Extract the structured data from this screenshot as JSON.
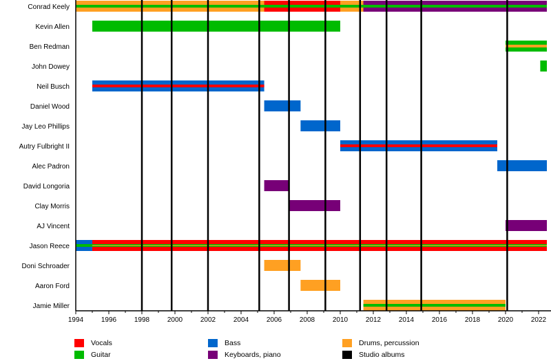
{
  "chart_data": {
    "type": "timeline",
    "x_min": 1994,
    "x_max": 2022.5,
    "x_ticks": [
      "1994",
      "1996",
      "1998",
      "2000",
      "2002",
      "2004",
      "2006",
      "2008",
      "2010",
      "2012",
      "2014",
      "2016",
      "2018",
      "2020",
      "2022"
    ],
    "album_lines": [
      1998,
      1999.8,
      2002,
      2005.1,
      2006.9,
      2009.1,
      2011.2,
      2012.8,
      2014.9,
      2020.1
    ],
    "colors": {
      "vocals": "#ff0000",
      "guitar": "#00bb00",
      "bass": "#0066cc",
      "keys": "#770077",
      "drums": "#ffa022",
      "albums": "#000000"
    },
    "members": [
      {
        "name": "Conrad Keely",
        "bars": [
          {
            "start": 1994,
            "end": 2022.5,
            "primary": "vocals",
            "stripe": "guitar"
          },
          {
            "start": 1994,
            "end": 2005.4,
            "primary": "drums",
            "stripe": "guitar"
          },
          {
            "start": 2010,
            "end": 2011.4,
            "primary": "drums",
            "stripe": "guitar"
          },
          {
            "start": 2011.4,
            "end": 2022.5,
            "primary": "keys",
            "stripe": "guitar"
          }
        ]
      },
      {
        "name": "Kevin Allen",
        "bars": [
          {
            "start": 1995,
            "end": 2010,
            "primary": "guitar"
          }
        ]
      },
      {
        "name": "Ben Redman",
        "bars": [
          {
            "start": 2020,
            "end": 2022.5,
            "primary": "guitar",
            "stripe": "drums"
          }
        ]
      },
      {
        "name": "John Dowey",
        "bars": [
          {
            "start": 2022.1,
            "end": 2022.5,
            "primary": "guitar"
          }
        ]
      },
      {
        "name": "Neil Busch",
        "bars": [
          {
            "start": 1995,
            "end": 2005.4,
            "primary": "bass",
            "stripe": "vocals"
          }
        ]
      },
      {
        "name": "Daniel Wood",
        "bars": [
          {
            "start": 2005.4,
            "end": 2007.6,
            "primary": "bass"
          }
        ]
      },
      {
        "name": "Jay Leo Phillips",
        "bars": [
          {
            "start": 2007.6,
            "end": 2010,
            "primary": "bass"
          }
        ]
      },
      {
        "name": "Autry Fulbright II",
        "bars": [
          {
            "start": 2010,
            "end": 2019.5,
            "primary": "bass",
            "stripe": "vocals"
          }
        ]
      },
      {
        "name": "Alec Padron",
        "bars": [
          {
            "start": 2019.5,
            "end": 2022.5,
            "primary": "bass"
          }
        ]
      },
      {
        "name": "David Longoria",
        "bars": [
          {
            "start": 2005.4,
            "end": 2006.9,
            "primary": "keys"
          }
        ]
      },
      {
        "name": "Clay Morris",
        "bars": [
          {
            "start": 2006.9,
            "end": 2010,
            "primary": "keys"
          }
        ]
      },
      {
        "name": "AJ Vincent",
        "bars": [
          {
            "start": 2020,
            "end": 2022.5,
            "primary": "keys"
          }
        ]
      },
      {
        "name": "Jason Reece",
        "bars": [
          {
            "start": 1994,
            "end": 2022.5,
            "primary": "vocals",
            "stripe": "guitar",
            "stripe2": "drums"
          },
          {
            "start": 1994,
            "end": 1995,
            "primary": "bass",
            "stripe": "guitar"
          }
        ]
      },
      {
        "name": "Doni Schroader",
        "bars": [
          {
            "start": 2005.4,
            "end": 2007.6,
            "primary": "drums"
          }
        ]
      },
      {
        "name": "Aaron Ford",
        "bars": [
          {
            "start": 2007.6,
            "end": 2010,
            "primary": "drums"
          }
        ]
      },
      {
        "name": "Jamie Miller",
        "bars": [
          {
            "start": 2011.4,
            "end": 2020,
            "primary": "drums",
            "stripe": "guitar"
          }
        ]
      }
    ],
    "legend": [
      {
        "label": "Vocals",
        "color": "#ff0000"
      },
      {
        "label": "Guitar",
        "color": "#00bb00"
      },
      {
        "label": "Bass",
        "color": "#0066cc"
      },
      {
        "label": "Keyboards, piano",
        "color": "#770077"
      },
      {
        "label": "Drums, percussion",
        "color": "#ffa022"
      },
      {
        "label": "Studio albums",
        "color": "#000000"
      }
    ]
  }
}
